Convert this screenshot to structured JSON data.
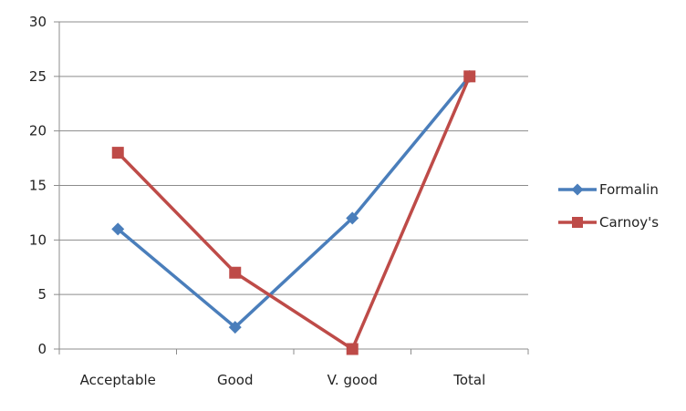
{
  "chart_data": {
    "type": "line",
    "title": "",
    "xlabel": "",
    "ylabel": "",
    "categories": [
      "Acceptable",
      "Good",
      "V. good",
      "Total"
    ],
    "ylim": [
      0,
      30
    ],
    "yticks": [
      0,
      5,
      10,
      15,
      20,
      25,
      30
    ],
    "grid": true,
    "legend_position": "right",
    "series": [
      {
        "name": "Formalin",
        "values": [
          11,
          2,
          12,
          25
        ],
        "color": "#4a7ebb",
        "marker": "diamond"
      },
      {
        "name": "Carnoy's",
        "values": [
          18,
          7,
          0,
          25
        ],
        "color": "#be4b48",
        "marker": "square"
      }
    ]
  }
}
